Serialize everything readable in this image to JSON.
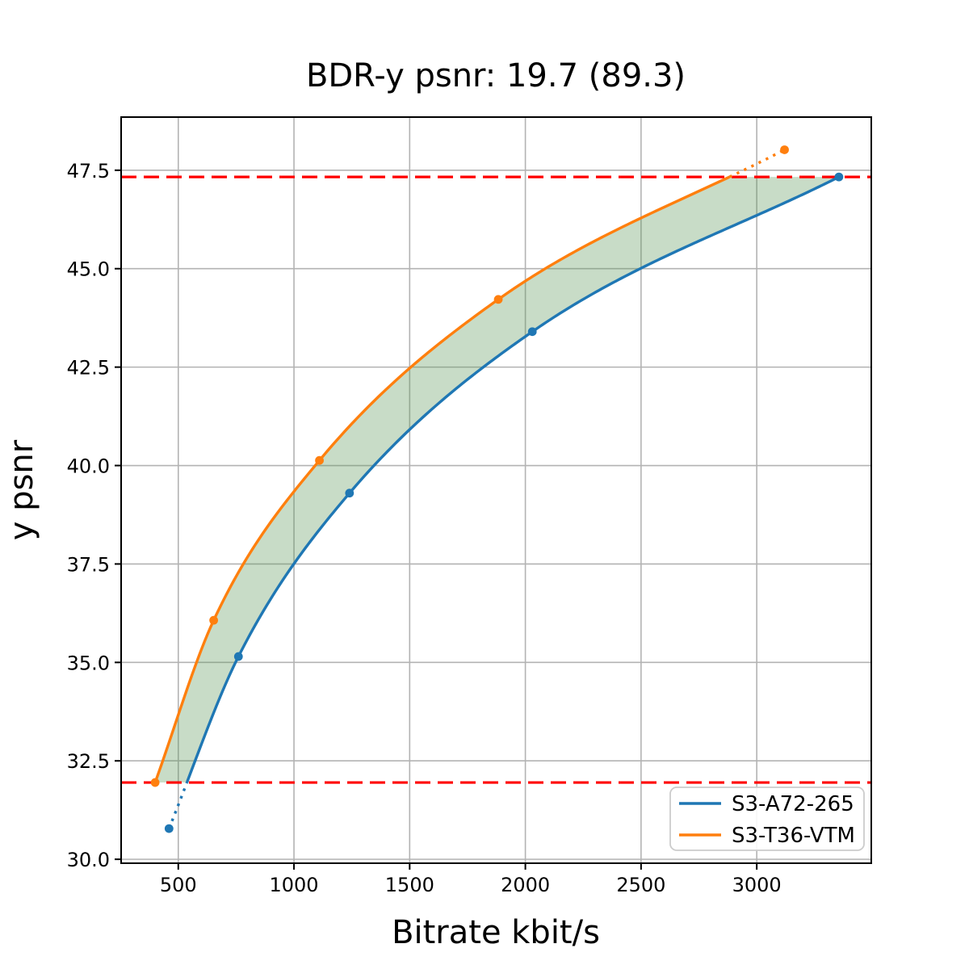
{
  "figure": {
    "background_color": "#ffffff",
    "grid_color": "#b3b3b3",
    "spine_color": "#000000"
  },
  "chart_data": {
    "type": "line",
    "title": "BDR-y psnr: 19.7 (89.3)",
    "xlabel": "Bitrate kbit/s",
    "ylabel": "y psnr",
    "xlim": [
      253,
      3495
    ],
    "ylim": [
      29.9,
      48.85
    ],
    "xticks": [
      500,
      1000,
      1500,
      2000,
      2500,
      3000
    ],
    "xtick_labels": [
      "500",
      "1000",
      "1500",
      "2000",
      "2500",
      "3000"
    ],
    "yticks": [
      30.0,
      32.5,
      35.0,
      37.5,
      40.0,
      42.5,
      45.0,
      47.5
    ],
    "ytick_labels": [
      "30.0",
      "32.5",
      "35.0",
      "37.5",
      "40.0",
      "42.5",
      "45.0",
      "47.5"
    ],
    "grid": true,
    "legend_position": "lower right",
    "series": [
      {
        "name": "S3-A72-265",
        "color": "#1f77b4",
        "points": [
          [
            460,
            30.78
          ],
          [
            760,
            35.15
          ],
          [
            1240,
            39.3
          ],
          [
            2030,
            43.4
          ],
          [
            3355,
            47.33
          ]
        ]
      },
      {
        "name": "S3-T36-VTM",
        "color": "#ff7f0e",
        "points": [
          [
            400,
            31.95
          ],
          [
            653,
            36.07
          ],
          [
            1110,
            40.13
          ],
          [
            1883,
            44.22
          ],
          [
            3120,
            48.02
          ]
        ]
      }
    ],
    "overlap_band": {
      "low": 31.95,
      "high": 47.33,
      "line_color": "#ff0000",
      "fill_color": "rgba(88,150,86,0.33)"
    }
  }
}
